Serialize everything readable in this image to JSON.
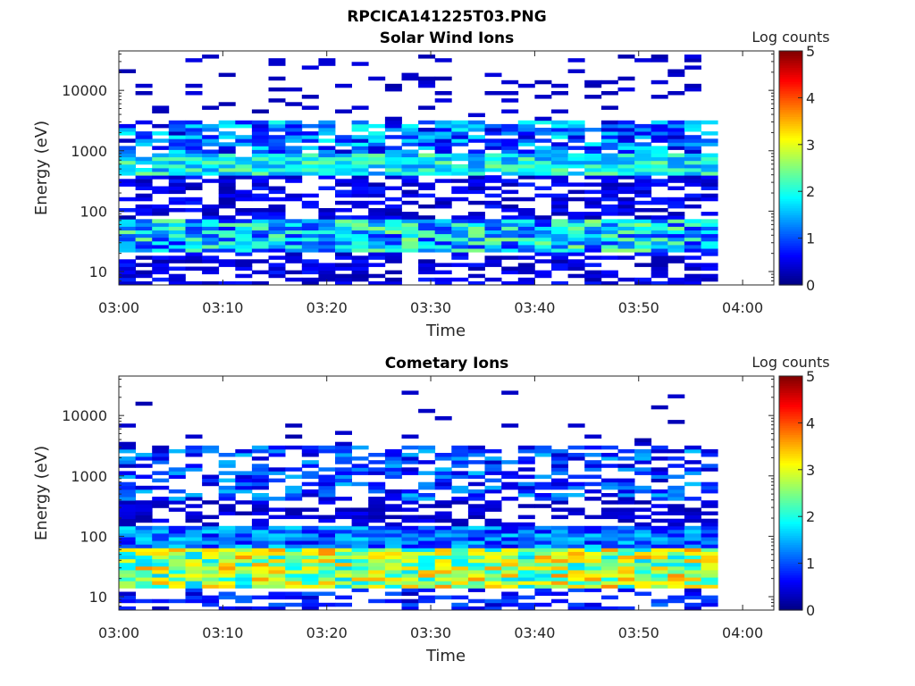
{
  "figure_title": "RPCICA141225T03.PNG",
  "chart_data": [
    {
      "type": "heatmap",
      "title": "Solar Wind Ions",
      "xlabel": "Time",
      "ylabel": "Energy (eV)",
      "x_ticks": [
        "03:00",
        "03:10",
        "03:20",
        "03:30",
        "03:40",
        "03:50",
        "04:00"
      ],
      "x_range": [
        "03:00",
        "04:03"
      ],
      "y_scale": "log",
      "y_ticks": [
        10,
        100,
        1000,
        10000
      ],
      "y_ticks_text": [
        "10",
        "100",
        "1000",
        "10000"
      ],
      "y_range": [
        6,
        45000
      ],
      "colorbar": {
        "label": "Log counts",
        "range": [
          0,
          5
        ],
        "ticks": [
          "0",
          "1",
          "2",
          "3",
          "4",
          "5"
        ],
        "colormap": "jet"
      },
      "time_columns_start": "03:00",
      "time_column_step_seconds": 96,
      "time_columns": 36,
      "value_bands": [
        {
          "energy_min_eV": 6,
          "energy_max_eV": 20,
          "level_range": [
            0.2,
            0.8
          ],
          "coverage": 0.55
        },
        {
          "energy_min_eV": 20,
          "energy_max_eV": 70,
          "level_range": [
            0.6,
            2.6
          ],
          "coverage": 1.0
        },
        {
          "energy_min_eV": 70,
          "energy_max_eV": 400,
          "level_range": [
            0.2,
            0.8
          ],
          "coverage": 0.6
        },
        {
          "energy_min_eV": 400,
          "energy_max_eV": 900,
          "level_range": [
            1.2,
            2.5
          ],
          "coverage": 0.95
        },
        {
          "energy_min_eV": 900,
          "energy_max_eV": 3200,
          "level_range": [
            0.3,
            2.0
          ],
          "coverage": 0.8
        },
        {
          "energy_min_eV": 3200,
          "energy_max_eV": 40000,
          "level_range": [
            0.2,
            0.5
          ],
          "coverage": 0.14
        }
      ]
    },
    {
      "type": "heatmap",
      "title": "Cometary Ions",
      "xlabel": "Time",
      "ylabel": "Energy (eV)",
      "x_ticks": [
        "03:00",
        "03:10",
        "03:20",
        "03:30",
        "03:40",
        "03:50",
        "04:00"
      ],
      "x_range": [
        "03:00",
        "04:03"
      ],
      "y_scale": "log",
      "y_ticks": [
        10,
        100,
        1000,
        10000
      ],
      "y_ticks_text": [
        "10",
        "100",
        "1000",
        "10000"
      ],
      "y_range": [
        6,
        45000
      ],
      "colorbar": {
        "label": "Log counts",
        "range": [
          0,
          5
        ],
        "ticks": [
          "0",
          "1",
          "2",
          "3",
          "4",
          "5"
        ],
        "colormap": "jet"
      },
      "time_columns_start": "03:00",
      "time_column_step_seconds": 96,
      "time_columns": 36,
      "value_bands": [
        {
          "energy_min_eV": 6,
          "energy_max_eV": 14,
          "level_range": [
            0.3,
            1.2
          ],
          "coverage": 0.45
        },
        {
          "energy_min_eV": 14,
          "energy_max_eV": 60,
          "level_range": [
            1.6,
            3.7
          ],
          "coverage": 1.0
        },
        {
          "energy_min_eV": 60,
          "energy_max_eV": 150,
          "level_range": [
            0.5,
            1.8
          ],
          "coverage": 1.0
        },
        {
          "energy_min_eV": 150,
          "energy_max_eV": 400,
          "level_range": [
            0.2,
            0.6
          ],
          "coverage": 0.5
        },
        {
          "energy_min_eV": 400,
          "energy_max_eV": 3200,
          "level_range": [
            0.3,
            1.6
          ],
          "coverage": 0.55
        },
        {
          "energy_min_eV": 3200,
          "energy_max_eV": 25000,
          "level_range": [
            0.2,
            0.4
          ],
          "coverage": 0.03
        }
      ]
    }
  ]
}
